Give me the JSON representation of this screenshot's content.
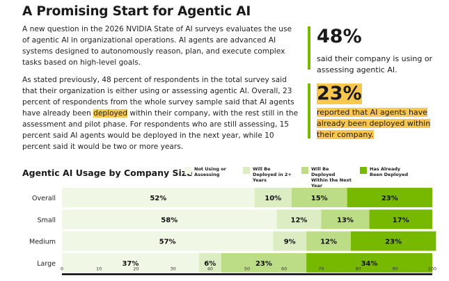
{
  "title": "A Promising Start for Agentic AI",
  "paragraph1": "A new question in the 2026 NVIDIA State of AI surveys evaluates the use of agentic AI in organizational operations. AI agents are advanced AI systems designed to autonomously reason, plan, and execute complex tasks based on high-level goals.",
  "paragraph2": {
    "before": "As stated previously, 48 percent of respondents in the total survey said that their organization is either using or assessing agentic AI. Overall, 23 percent of respondents from the whole survey sample said that AI agents have already been ",
    "highlight": "deployed",
    "after": " within their company, with the rest still in the assessment and pilot phase. For respondents who are still assessing, 15 percent said AI agents would be deployed in the next year, while 10 percent said it would be two or more years."
  },
  "stats": [
    {
      "value": "48%",
      "text": "said their company is using or assessing agentic AI."
    },
    {
      "value": "23%",
      "text": "reported that AI agents have already been deployed within their company."
    }
  ],
  "chart_data": {
    "type": "bar",
    "stacked": true,
    "orientation": "horizontal",
    "title": "Agentic AI Usage by Company Size",
    "categories": [
      "Overall",
      "Small",
      "Medium",
      "Large"
    ],
    "series": [
      {
        "name": "Not Using or Assessing",
        "color": "#f0f7e4",
        "values": [
          52,
          58,
          57,
          37
        ]
      },
      {
        "name": "Will Be Deployed in 2+ Years",
        "color": "#dcedc4",
        "values": [
          10,
          12,
          9,
          6
        ]
      },
      {
        "name": "Will Be Deployed Within the Next Year",
        "color": "#bcdc85",
        "values": [
          15,
          13,
          12,
          23
        ]
      },
      {
        "name": "Has Already Been Deployed",
        "color": "#76b900",
        "values": [
          23,
          17,
          23,
          34
        ]
      }
    ],
    "xlim": [
      0,
      100
    ],
    "xticks": [
      "0",
      "10",
      "20",
      "30",
      "40",
      "50",
      "60",
      "70",
      "80",
      "90",
      "100"
    ],
    "legend": "top-right",
    "data_label_suffix": "%"
  }
}
